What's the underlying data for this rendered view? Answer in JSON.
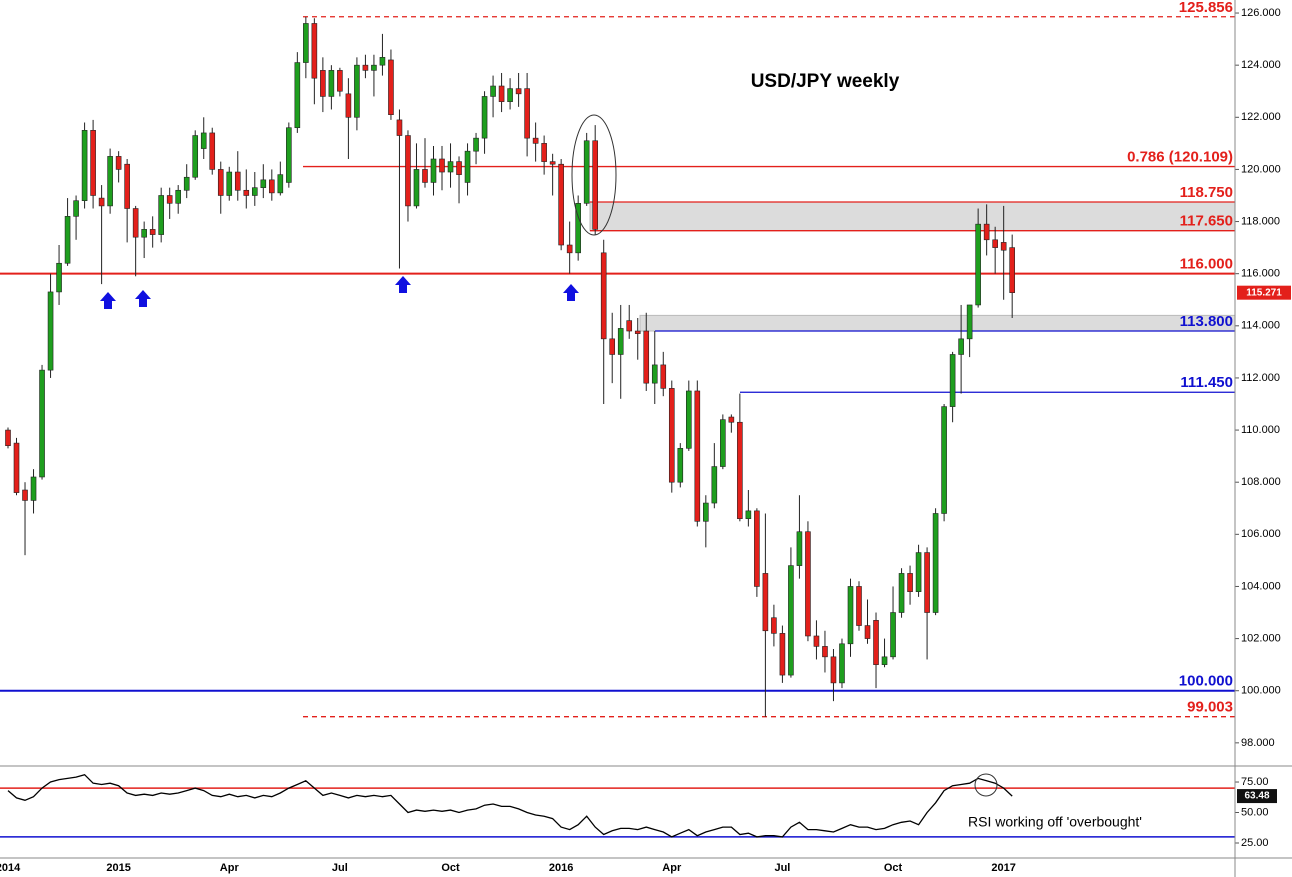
{
  "chart_data": [
    {
      "type": "candlestick",
      "title": "USD/JPY weekly",
      "categories": [
        "2014",
        null,
        null,
        null,
        null,
        null,
        null,
        null,
        null,
        null,
        null,
        null,
        null,
        "2015",
        null,
        null,
        null,
        null,
        null,
        null,
        null,
        null,
        null,
        null,
        null,
        null,
        "Apr",
        null,
        null,
        null,
        null,
        null,
        null,
        null,
        null,
        null,
        null,
        null,
        null,
        "Jul",
        null,
        null,
        null,
        null,
        null,
        null,
        null,
        null,
        null,
        null,
        null,
        null,
        "Oct",
        null,
        null,
        null,
        null,
        null,
        null,
        null,
        null,
        null,
        null,
        null,
        null,
        "2016",
        null,
        null,
        null,
        null,
        null,
        null,
        null,
        null,
        null,
        null,
        null,
        null,
        "Apr",
        null,
        null,
        null,
        null,
        null,
        null,
        null,
        null,
        null,
        null,
        null,
        null,
        "Jul",
        null,
        null,
        null,
        null,
        null,
        null,
        null,
        null,
        null,
        null,
        null,
        null,
        "Oct",
        null,
        null,
        null,
        null,
        null,
        null,
        null,
        null,
        null,
        null,
        null,
        null,
        "2017",
        null
      ],
      "open": [
        110.0,
        109.5,
        107.7,
        107.3,
        108.2,
        112.3,
        115.3,
        116.4,
        118.2,
        118.8,
        121.5,
        118.9,
        118.6,
        120.5,
        120.2,
        118.5,
        117.4,
        117.7,
        117.5,
        119.0,
        118.7,
        119.2,
        119.7,
        120.8,
        121.4,
        120.0,
        119.0,
        119.9,
        119.2,
        119.0,
        119.3,
        119.6,
        119.1,
        119.5,
        121.6,
        124.1,
        125.6,
        123.8,
        122.8,
        123.8,
        122.9,
        122.0,
        124.0,
        123.8,
        124.0,
        124.2,
        121.9,
        121.3,
        118.6,
        120.0,
        119.5,
        120.4,
        119.9,
        120.3,
        119.5,
        120.7,
        121.2,
        122.8,
        123.2,
        122.6,
        123.1,
        123.1,
        121.2,
        121.0,
        120.3,
        120.2,
        117.1,
        116.8,
        118.7,
        121.1,
        116.8,
        113.5,
        112.9,
        114.2,
        113.8,
        113.8,
        111.8,
        112.5,
        111.6,
        108.0,
        109.3,
        111.5,
        106.5,
        107.2,
        108.6,
        110.5,
        110.3,
        106.6,
        106.9,
        104.5,
        102.8,
        102.2,
        100.6,
        104.8,
        106.1,
        102.1,
        101.7,
        101.3,
        100.3,
        101.8,
        104.0,
        102.5,
        102.7,
        101.0,
        101.3,
        103.0,
        104.5,
        103.8,
        105.3,
        103.0,
        106.8,
        110.9,
        112.9,
        113.5,
        114.8,
        117.9,
        117.3,
        117.2,
        117.0
      ],
      "high": [
        110.1,
        109.7,
        108.0,
        108.5,
        112.5,
        116.0,
        117.1,
        118.9,
        119.0,
        121.8,
        121.9,
        119.4,
        120.8,
        120.7,
        120.4,
        118.6,
        118.0,
        118.2,
        119.3,
        119.3,
        119.4,
        120.2,
        121.5,
        122.0,
        121.6,
        120.3,
        120.1,
        120.7,
        120.0,
        119.9,
        120.2,
        120.0,
        120.3,
        121.8,
        124.5,
        125.856,
        125.8,
        124.3,
        124.0,
        123.9,
        123.5,
        124.3,
        124.4,
        124.4,
        125.2,
        124.6,
        122.3,
        121.5,
        121.0,
        121.2,
        120.9,
        120.9,
        121.0,
        120.5,
        121.0,
        121.4,
        123.0,
        123.6,
        123.7,
        123.5,
        123.7,
        123.7,
        121.8,
        121.3,
        120.6,
        120.4,
        118.0,
        119.0,
        121.4,
        121.7,
        117.3,
        114.5,
        114.8,
        114.8,
        114.3,
        114.5,
        113.8,
        113.0,
        111.9,
        109.5,
        111.9,
        111.9,
        107.5,
        109.5,
        110.6,
        110.6,
        111.4,
        107.7,
        107.0,
        106.8,
        103.3,
        102.5,
        105.5,
        107.5,
        106.5,
        102.7,
        102.3,
        101.6,
        102.0,
        104.3,
        104.2,
        103.5,
        103.0,
        102.0,
        104.0,
        104.7,
        104.8,
        105.6,
        105.5,
        107.0,
        111.0,
        113.0,
        114.8,
        114.8,
        118.5,
        118.66,
        117.8,
        118.6,
        117.5
      ],
      "low": [
        109.3,
        107.5,
        105.2,
        106.8,
        108.1,
        112.0,
        114.8,
        116.3,
        117.3,
        118.5,
        118.5,
        115.6,
        118.3,
        119.5,
        117.2,
        115.9,
        116.6,
        117.0,
        117.2,
        118.1,
        118.3,
        118.9,
        119.6,
        120.4,
        119.8,
        118.3,
        118.8,
        118.8,
        118.5,
        118.6,
        118.9,
        118.8,
        119.0,
        119.3,
        121.4,
        123.5,
        122.5,
        122.2,
        122.3,
        122.8,
        120.4,
        121.5,
        123.5,
        122.8,
        123.6,
        121.9,
        116.2,
        118.0,
        118.5,
        119.3,
        119.0,
        119.2,
        119.3,
        118.7,
        119.0,
        120.2,
        120.6,
        122.0,
        122.2,
        122.3,
        122.4,
        120.5,
        120.3,
        119.8,
        119.0,
        116.9,
        116.0,
        116.5,
        118.6,
        117.5,
        111.0,
        111.8,
        111.2,
        113.5,
        112.7,
        111.5,
        111.0,
        111.3,
        107.6,
        107.8,
        109.2,
        106.3,
        105.5,
        107.0,
        108.5,
        109.9,
        106.5,
        106.3,
        103.6,
        99.003,
        101.7,
        100.3,
        100.5,
        104.3,
        101.9,
        101.2,
        100.7,
        99.6,
        100.1,
        101.3,
        102.3,
        101.8,
        100.1,
        100.9,
        101.2,
        102.8,
        103.3,
        103.6,
        101.2,
        102.9,
        106.5,
        110.3,
        111.4,
        112.8,
        114.7,
        116.7,
        116.0,
        115.0,
        114.3
      ],
      "close": [
        109.4,
        107.6,
        107.3,
        108.2,
        112.3,
        115.3,
        116.4,
        118.2,
        118.8,
        121.5,
        119.0,
        118.6,
        120.5,
        120.0,
        118.5,
        117.4,
        117.7,
        117.5,
        119.0,
        118.7,
        119.2,
        119.7,
        121.3,
        121.4,
        120.0,
        119.0,
        119.9,
        119.2,
        119.0,
        119.3,
        119.6,
        119.1,
        119.8,
        121.6,
        124.1,
        125.6,
        123.5,
        122.8,
        123.8,
        123.0,
        122.0,
        124.0,
        123.8,
        124.0,
        124.3,
        122.1,
        121.3,
        118.6,
        120.0,
        119.5,
        120.4,
        119.9,
        120.3,
        119.8,
        120.7,
        121.2,
        122.8,
        123.2,
        122.6,
        123.1,
        122.9,
        121.2,
        121.0,
        120.3,
        120.2,
        117.1,
        116.8,
        118.7,
        121.1,
        117.7,
        113.5,
        112.9,
        113.9,
        113.8,
        113.7,
        111.8,
        112.5,
        111.6,
        108.0,
        109.3,
        111.5,
        106.5,
        107.2,
        108.6,
        110.4,
        110.3,
        106.6,
        106.9,
        104.0,
        102.3,
        102.2,
        100.6,
        104.8,
        106.1,
        102.1,
        101.7,
        101.3,
        100.3,
        101.8,
        104.0,
        102.5,
        102.0,
        101.0,
        101.3,
        103.0,
        104.5,
        103.8,
        105.3,
        103.0,
        106.8,
        110.9,
        112.9,
        113.5,
        114.8,
        117.9,
        117.3,
        117.0,
        116.9,
        115.271
      ],
      "up_color": "#1e9e1e",
      "down_color": "#e3201b",
      "ylim": [
        97.15,
        126.5
      ],
      "yticks": [
        {
          "value": 98,
          "label": "98.000"
        },
        {
          "value": 100,
          "label": "100.000"
        },
        {
          "value": 102,
          "label": "102.000"
        },
        {
          "value": 104,
          "label": "104.000"
        },
        {
          "value": 106,
          "label": "106.000"
        },
        {
          "value": 108,
          "label": "108.000"
        },
        {
          "value": 110,
          "label": "110.000"
        },
        {
          "value": 112,
          "label": "112.000"
        },
        {
          "value": 114,
          "label": "114.000"
        },
        {
          "value": 116,
          "label": "116.000"
        },
        {
          "value": 118,
          "label": "118.000"
        },
        {
          "value": 120,
          "label": "120.000"
        },
        {
          "value": 122,
          "label": "122.000"
        },
        {
          "value": 124,
          "label": "124.000"
        },
        {
          "value": 126,
          "label": "126.000"
        }
      ],
      "levels": [
        {
          "value": 125.856,
          "label": "125.856",
          "color": "#e3201b",
          "dashed": true
        },
        {
          "value": 120.109,
          "label": "0.786 (120.109)",
          "color": "#e3201b",
          "dashed": false
        },
        {
          "value": 118.75,
          "label": "118.750",
          "color": "#e3201b",
          "dashed": false
        },
        {
          "value": 117.65,
          "label": "117.650",
          "color": "#e3201b",
          "dashed": false
        },
        {
          "value": 116,
          "label": "116.000",
          "color": "#e3201b",
          "dashed": false
        },
        {
          "value": 113.8,
          "label": "113.800",
          "color": "#1010d0",
          "dashed": false
        },
        {
          "value": 111.45,
          "label": "111.450",
          "color": "#1010d0",
          "dashed": false
        },
        {
          "value": 100,
          "label": "100.000",
          "color": "#1010d0",
          "dashed": false
        },
        {
          "value": 99.003,
          "label": "99.003",
          "color": "#e3201b",
          "dashed": true
        }
      ],
      "zones": [
        [
          117.65,
          118.75
        ],
        [
          113.8,
          114.4
        ]
      ]
    },
    {
      "type": "line",
      "annotation": "RSI working off 'overbought'",
      "values": [
        68,
        62,
        60,
        63,
        70,
        75,
        77,
        78,
        79,
        81,
        74,
        73,
        74,
        72,
        66,
        64,
        65,
        64,
        66,
        65,
        66,
        68,
        70,
        68,
        64,
        63,
        65,
        63,
        64,
        62,
        64,
        63,
        66,
        70,
        73,
        76,
        70,
        64,
        66,
        64,
        62,
        64,
        63,
        64,
        63,
        64,
        57,
        50,
        52,
        51,
        52,
        51,
        52,
        50,
        52,
        53,
        56,
        57,
        55,
        55,
        53,
        50,
        48,
        47,
        45,
        38,
        36,
        40,
        47,
        38,
        32,
        35,
        37,
        37,
        36,
        38,
        36,
        34,
        30,
        33,
        36,
        31,
        34,
        36,
        38,
        38,
        32,
        33,
        30,
        31,
        31,
        30,
        38,
        42,
        36,
        36,
        35,
        34,
        37,
        40,
        38,
        38,
        36,
        37,
        40,
        42,
        43,
        40,
        50,
        58,
        68,
        72,
        73,
        74,
        78,
        76,
        74,
        70,
        63.48
      ],
      "color": "#000000",
      "ylim": [
        12.7,
        86.5
      ],
      "yticks": [
        {
          "value": 25,
          "label": "25.00"
        },
        {
          "value": 50,
          "label": "50.00"
        },
        {
          "value": 75,
          "label": "75.00"
        }
      ],
      "hlines": [
        {
          "value": 70,
          "color": "#e3201b"
        },
        {
          "value": 30,
          "color": "#1010d0"
        }
      ]
    }
  ]
}
